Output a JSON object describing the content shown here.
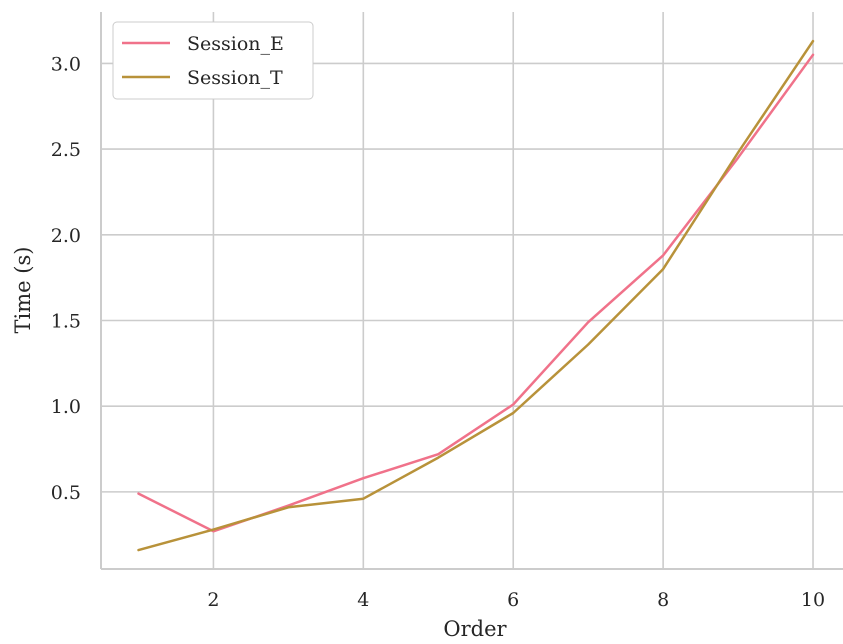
{
  "chart_data": {
    "type": "line",
    "xlabel": "Order",
    "ylabel": "Time (s)",
    "xlim": [
      0.5,
      10.4
    ],
    "ylim": [
      0.05,
      3.3
    ],
    "xticks": [
      2,
      4,
      6,
      8,
      10
    ],
    "yticks": [
      0.5,
      1.0,
      1.5,
      2.0,
      2.5,
      3.0
    ],
    "xtick_labels": [
      "2",
      "4",
      "6",
      "8",
      "10"
    ],
    "ytick_labels": [
      "0.5",
      "1.0",
      "1.5",
      "2.0",
      "2.5",
      "3.0"
    ],
    "grid": true,
    "legend_position": "top-left",
    "x": [
      1,
      2,
      3,
      4,
      5,
      6,
      7,
      8,
      9,
      10
    ],
    "series": [
      {
        "name": "Session_E",
        "color": "#f0728a",
        "values": [
          0.49,
          0.27,
          0.42,
          0.58,
          0.72,
          1.01,
          1.49,
          1.88,
          2.45,
          3.05
        ]
      },
      {
        "name": "Session_T",
        "color": "#b8923a",
        "values": [
          0.16,
          0.28,
          0.41,
          0.46,
          0.7,
          0.96,
          1.36,
          1.8,
          2.48,
          3.13
        ]
      }
    ]
  }
}
